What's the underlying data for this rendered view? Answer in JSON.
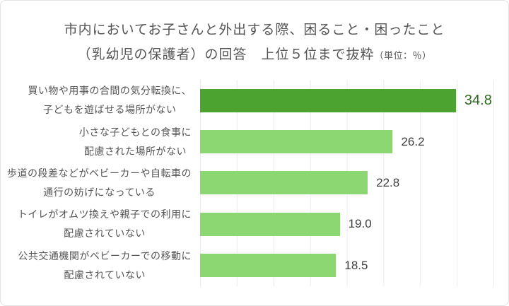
{
  "title": {
    "line1": "市内においてお子さんと外出する際、困ること・困ったこと",
    "line2_main": "（乳幼児の保護者）の回答　上位５位まで抜粋",
    "line2_unit": "（単位：％）"
  },
  "chart_data": {
    "type": "bar",
    "orientation": "horizontal",
    "title": "市内においてお子さんと外出する際、困ること・困ったこと（乳幼児の保護者）の回答 上位５位まで抜粋",
    "unit": "％",
    "categories": [
      "買い物や用事の合間の気分転換に、子どもを遊ばせる場所がない",
      "小さな子どもとの食事に配慮された場所がない",
      "歩道の段差などがベビーカーや自転車の通行の妨げになっている",
      "トイレがオムツ換えや親子での利用に配慮されていない",
      "公共交通機関がベビーカーでの移動に配慮されていない"
    ],
    "values": [
      34.8,
      26.2,
      22.8,
      19.0,
      18.5
    ],
    "xlim": [
      0,
      40
    ],
    "gridline_step": 5,
    "grid": true,
    "legend": false,
    "colors": {
      "bar_highlight": "#4ca32f",
      "bar_default": "#8dd773",
      "value_highlight": "#2d6b1e",
      "value_default": "#3f3f3f",
      "gridline": "#ebebeb",
      "title_text": "#555555",
      "card_border": "#e3e3e3"
    }
  },
  "bars": [
    {
      "label_line1": "買い物や用事の合間の気分転換に、",
      "label_line2": "子どもを遊ばせる場所がない",
      "value_num": 34.8,
      "value_text": "34.8",
      "highlight": true
    },
    {
      "label_line1": "小さな子どもとの食事に",
      "label_line2": "配慮された場所がない",
      "value_num": 26.2,
      "value_text": "26.2",
      "highlight": false
    },
    {
      "label_line1": "歩道の段差などがベビーカーや自転車の",
      "label_line2": "通行の妨げになっている",
      "value_num": 22.8,
      "value_text": "22.8",
      "highlight": false
    },
    {
      "label_line1": "トイレがオムツ換えや親子での利用に",
      "label_line2": "配慮されていない",
      "value_num": 19.0,
      "value_text": "19.0",
      "highlight": false
    },
    {
      "label_line1": "公共交通機関がベビーカーでの移動に",
      "label_line2": "配慮されていない",
      "value_num": 18.5,
      "value_text": "18.5",
      "highlight": false
    }
  ]
}
